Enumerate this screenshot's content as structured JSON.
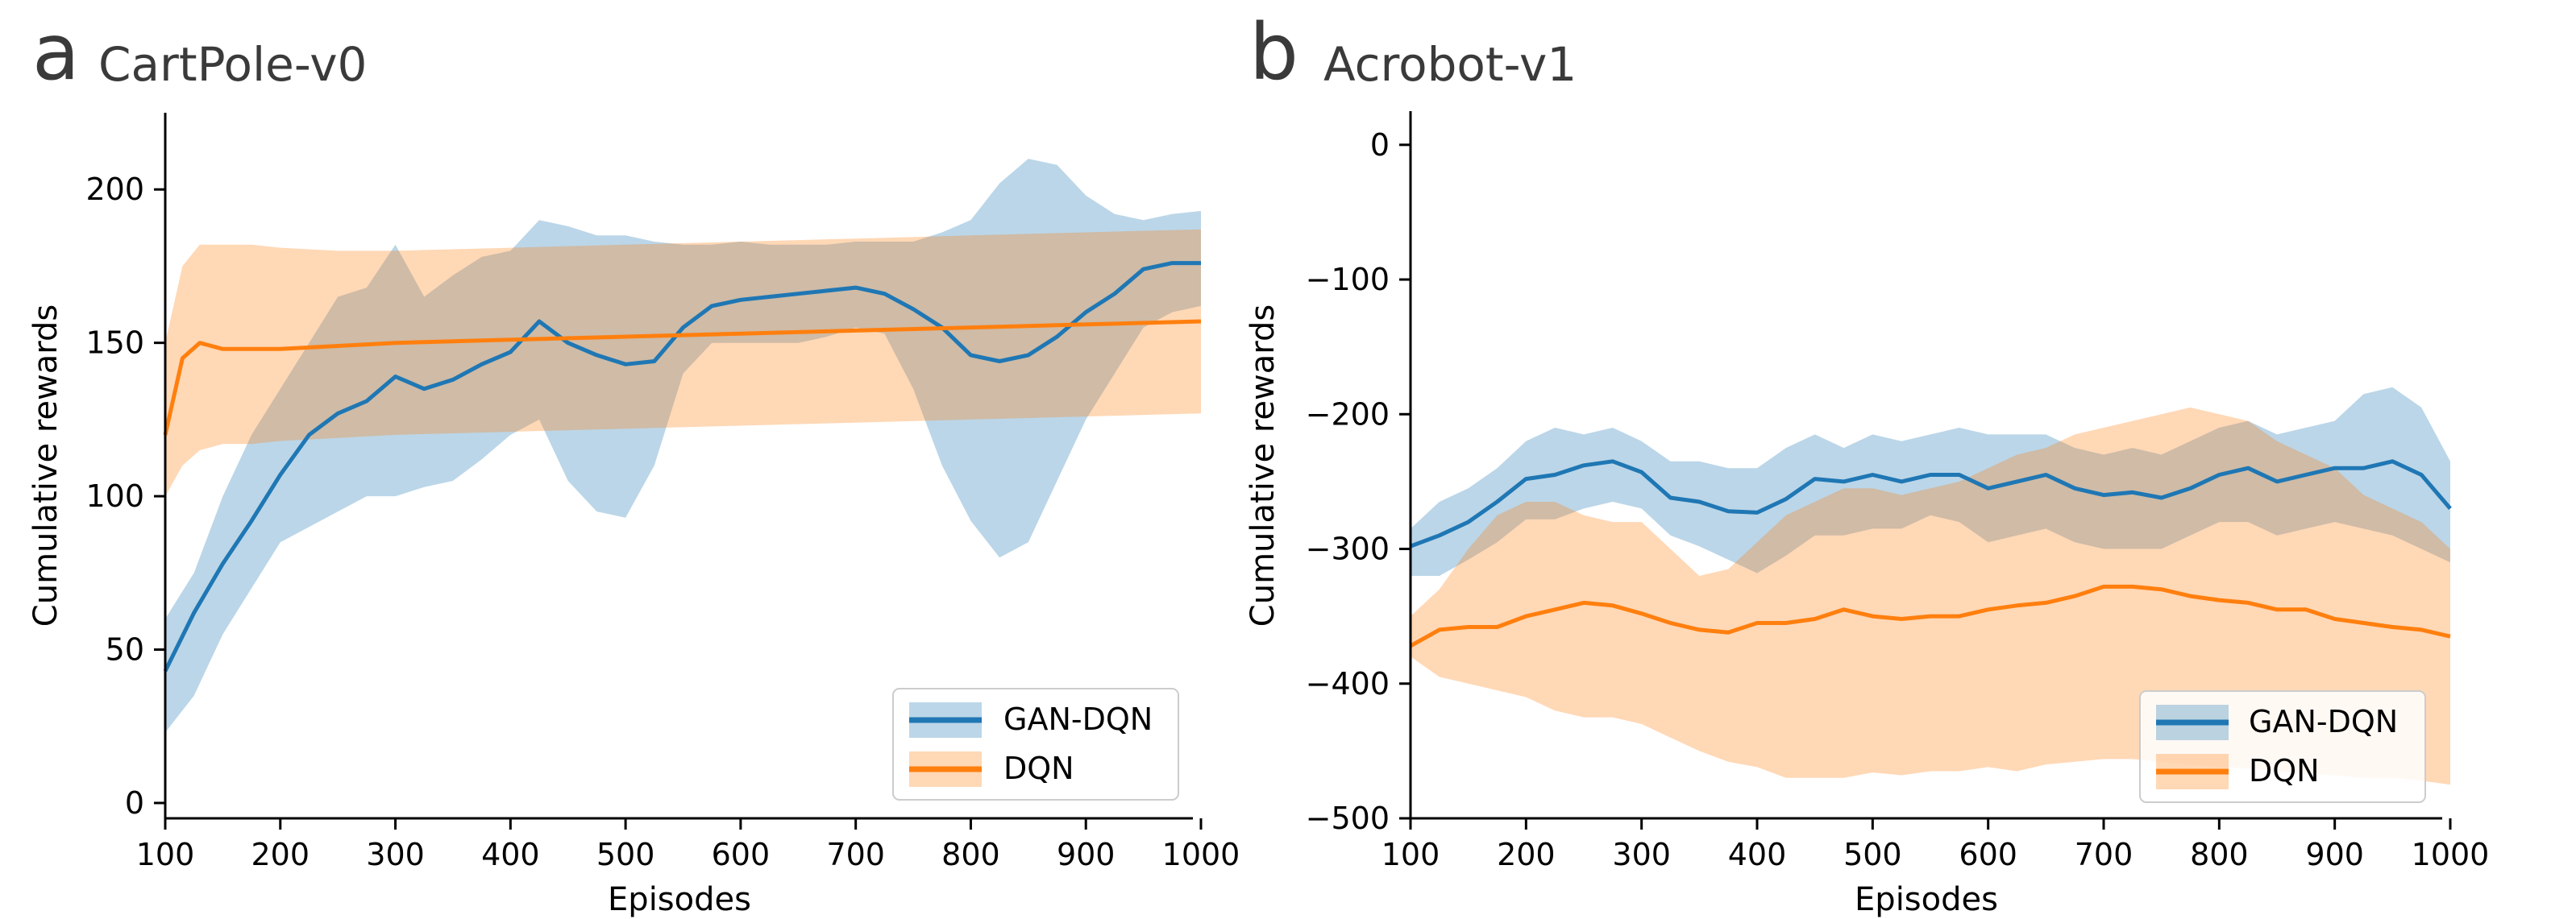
{
  "colors": {
    "gan_dqn": "#1f77b4",
    "dqn": "#ff7f0e"
  },
  "chart_data": [
    {
      "type": "line",
      "panel_letter": "a",
      "title": "CartPole-v0",
      "xlabel": "Episodes",
      "ylabel": "Cumulative rewards",
      "xlim": [
        100,
        1000
      ],
      "ylim": [
        -5,
        225
      ],
      "xticks": [
        100,
        200,
        300,
        400,
        500,
        600,
        700,
        800,
        900,
        1000
      ],
      "yticks": [
        0,
        50,
        100,
        150,
        200
      ],
      "legend": "bottom-right",
      "grid": false,
      "series": [
        {
          "name": "GAN-DQN",
          "color": "#1f77b4",
          "x": [
            100,
            125,
            150,
            175,
            200,
            225,
            250,
            275,
            300,
            325,
            350,
            375,
            400,
            425,
            450,
            475,
            500,
            525,
            550,
            575,
            600,
            625,
            650,
            675,
            700,
            725,
            750,
            775,
            800,
            825,
            850,
            875,
            900,
            925,
            950,
            975,
            1000
          ],
          "mean": [
            43,
            62,
            78,
            92,
            107,
            120,
            127,
            131,
            139,
            135,
            138,
            143,
            147,
            157,
            150,
            146,
            143,
            144,
            155,
            162,
            164,
            165,
            166,
            167,
            168,
            166,
            161,
            155,
            146,
            144,
            146,
            152,
            160,
            166,
            174,
            176,
            176
          ],
          "upper": [
            60,
            75,
            100,
            120,
            135,
            150,
            165,
            168,
            182,
            165,
            172,
            178,
            180,
            190,
            188,
            185,
            185,
            183,
            182,
            182,
            183,
            182,
            182,
            182,
            183,
            183,
            183,
            186,
            190,
            202,
            210,
            208,
            198,
            192,
            190,
            192,
            193
          ],
          "lower": [
            23,
            35,
            55,
            70,
            85,
            90,
            95,
            100,
            100,
            103,
            105,
            112,
            120,
            125,
            105,
            95,
            93,
            110,
            140,
            150,
            150,
            150,
            150,
            152,
            155,
            153,
            135,
            110,
            92,
            80,
            85,
            105,
            125,
            140,
            155,
            160,
            162
          ]
        },
        {
          "name": "DQN",
          "color": "#ff7f0e",
          "x": [
            100,
            115,
            130,
            150,
            175,
            200,
            250,
            300,
            400,
            500,
            600,
            700,
            800,
            900,
            1000
          ],
          "mean": [
            120,
            145,
            150,
            148,
            148,
            148,
            149,
            150,
            151,
            152,
            153,
            154,
            155,
            156,
            157
          ],
          "upper": [
            150,
            175,
            182,
            182,
            182,
            181,
            180,
            180,
            181,
            182,
            183,
            184,
            185,
            186,
            187
          ],
          "lower": [
            100,
            110,
            115,
            117,
            117,
            118,
            119,
            120,
            121,
            122,
            123,
            124,
            125,
            126,
            127
          ]
        }
      ]
    },
    {
      "type": "line",
      "panel_letter": "b",
      "title": "Acrobot-v1",
      "xlabel": "Episodes",
      "ylabel": "Cumulative rewards",
      "xlim": [
        100,
        1000
      ],
      "ylim": [
        -500,
        25
      ],
      "xticks": [
        100,
        200,
        300,
        400,
        500,
        600,
        700,
        800,
        900,
        1000
      ],
      "yticks": [
        0,
        -100,
        -200,
        -300,
        -400,
        -500
      ],
      "legend": "bottom-right",
      "grid": false,
      "series": [
        {
          "name": "GAN-DQN",
          "color": "#1f77b4",
          "x": [
            100,
            125,
            150,
            175,
            200,
            225,
            250,
            275,
            300,
            325,
            350,
            375,
            400,
            425,
            450,
            475,
            500,
            525,
            550,
            575,
            600,
            625,
            650,
            675,
            700,
            725,
            750,
            775,
            800,
            825,
            850,
            875,
            900,
            925,
            950,
            975,
            1000
          ],
          "mean": [
            -298,
            -290,
            -280,
            -265,
            -248,
            -245,
            -238,
            -235,
            -243,
            -262,
            -265,
            -272,
            -273,
            -263,
            -248,
            -250,
            -245,
            -250,
            -245,
            -245,
            -255,
            -250,
            -245,
            -255,
            -260,
            -258,
            -262,
            -255,
            -245,
            -240,
            -250,
            -245,
            -240,
            -240,
            -235,
            -245,
            -270
          ],
          "upper": [
            -285,
            -265,
            -255,
            -240,
            -220,
            -210,
            -215,
            -210,
            -220,
            -235,
            -235,
            -240,
            -240,
            -225,
            -215,
            -225,
            -215,
            -220,
            -215,
            -210,
            -215,
            -215,
            -215,
            -225,
            -230,
            -225,
            -230,
            -220,
            -210,
            -205,
            -215,
            -210,
            -205,
            -185,
            -180,
            -195,
            -235
          ],
          "lower": [
            -320,
            -320,
            -308,
            -295,
            -278,
            -278,
            -270,
            -265,
            -270,
            -290,
            -298,
            -308,
            -318,
            -305,
            -290,
            -290,
            -285,
            -285,
            -275,
            -280,
            -295,
            -290,
            -285,
            -295,
            -300,
            -300,
            -300,
            -290,
            -280,
            -280,
            -290,
            -285,
            -280,
            -285,
            -290,
            -300,
            -310
          ]
        },
        {
          "name": "DQN",
          "color": "#ff7f0e",
          "x": [
            100,
            125,
            150,
            175,
            200,
            225,
            250,
            275,
            300,
            325,
            350,
            375,
            400,
            425,
            450,
            475,
            500,
            525,
            550,
            575,
            600,
            625,
            650,
            675,
            700,
            725,
            750,
            775,
            800,
            825,
            850,
            875,
            900,
            925,
            950,
            975,
            1000
          ],
          "mean": [
            -372,
            -360,
            -358,
            -358,
            -350,
            -345,
            -340,
            -342,
            -348,
            -355,
            -360,
            -362,
            -355,
            -355,
            -352,
            -345,
            -350,
            -352,
            -350,
            -350,
            -345,
            -342,
            -340,
            -335,
            -328,
            -328,
            -330,
            -335,
            -338,
            -340,
            -345,
            -345,
            -352,
            -355,
            -358,
            -360,
            -365
          ],
          "upper": [
            -350,
            -330,
            -300,
            -275,
            -265,
            -265,
            -275,
            -280,
            -280,
            -300,
            -320,
            -315,
            -295,
            -275,
            -265,
            -255,
            -255,
            -260,
            -255,
            -250,
            -240,
            -230,
            -225,
            -215,
            -210,
            -205,
            -200,
            -195,
            -200,
            -205,
            -220,
            -230,
            -240,
            -260,
            -270,
            -280,
            -300
          ],
          "lower": [
            -380,
            -395,
            -400,
            -405,
            -410,
            -420,
            -425,
            -425,
            -430,
            -440,
            -450,
            -458,
            -462,
            -470,
            -470,
            -470,
            -466,
            -468,
            -465,
            -465,
            -462,
            -465,
            -460,
            -458,
            -456,
            -456,
            -458,
            -460,
            -462,
            -463,
            -465,
            -467,
            -468,
            -470,
            -470,
            -472,
            -475
          ]
        }
      ]
    }
  ]
}
